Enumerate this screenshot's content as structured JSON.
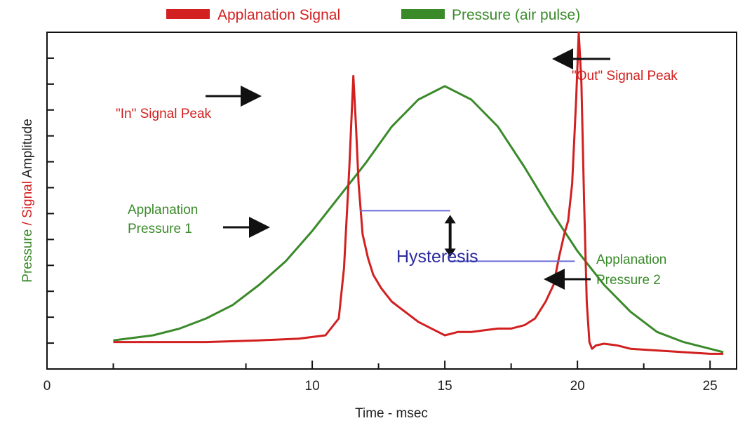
{
  "chart_data": {
    "type": "line",
    "title": "",
    "xlabel": "Time - msec",
    "ylabel_parts": [
      "Pressure",
      " / ",
      "Signal",
      " Amplitude"
    ],
    "xlim": [
      0,
      26
    ],
    "ylim": [
      0,
      1
    ],
    "xticks": [
      0,
      10,
      15,
      20,
      25
    ],
    "xtick_labels": [
      "0",
      "10",
      "15",
      "20",
      "25"
    ],
    "x_minor_ticks": [
      2.5,
      7.5,
      12.5,
      17.5,
      22.5
    ],
    "y_minor_tick_count": 12,
    "grid": false,
    "legend": {
      "position": "top",
      "items": [
        {
          "label": "Applanation Signal",
          "color": "#d21f1f"
        },
        {
          "label": "Pressure (air pulse)",
          "color": "#3a8a2a"
        }
      ]
    },
    "series": [
      {
        "name": "Applanation Signal",
        "color": "#d21f1f",
        "x": [
          2.5,
          4,
          6,
          8,
          9.5,
          10.5,
          11,
          11.2,
          11.4,
          11.55,
          11.65,
          11.75,
          11.9,
          12.1,
          12.3,
          12.6,
          13,
          13.5,
          14,
          14.5,
          15,
          15.5,
          16,
          16.5,
          17,
          17.5,
          18,
          18.4,
          18.8,
          19.1,
          19.3,
          19.5,
          19.65,
          19.8,
          19.95,
          20.05,
          20.15,
          20.25,
          20.35,
          20.45,
          20.55,
          20.7,
          21,
          21.5,
          22,
          23,
          24,
          25,
          25.5
        ],
        "y": [
          0.08,
          0.08,
          0.08,
          0.085,
          0.09,
          0.1,
          0.15,
          0.3,
          0.6,
          0.87,
          0.72,
          0.55,
          0.4,
          0.33,
          0.28,
          0.24,
          0.2,
          0.17,
          0.14,
          0.12,
          0.1,
          0.11,
          0.11,
          0.115,
          0.12,
          0.12,
          0.13,
          0.15,
          0.2,
          0.25,
          0.33,
          0.4,
          0.44,
          0.55,
          0.8,
          1.0,
          0.85,
          0.5,
          0.2,
          0.08,
          0.06,
          0.07,
          0.075,
          0.07,
          0.06,
          0.055,
          0.05,
          0.045,
          0.045
        ]
      },
      {
        "name": "Pressure (air pulse)",
        "color": "#3a8a2a",
        "x": [
          2.5,
          4,
          5,
          6,
          7,
          8,
          9,
          10,
          11,
          12,
          13,
          14,
          15,
          16,
          17,
          18,
          19,
          20,
          21,
          22,
          23,
          24,
          25,
          25.5
        ],
        "y": [
          0.085,
          0.1,
          0.12,
          0.15,
          0.19,
          0.25,
          0.32,
          0.41,
          0.51,
          0.61,
          0.72,
          0.8,
          0.84,
          0.8,
          0.72,
          0.6,
          0.47,
          0.35,
          0.25,
          0.17,
          0.11,
          0.08,
          0.06,
          0.05
        ]
      }
    ],
    "annotations": [
      {
        "id": "in-peak",
        "text": "\"In\" Signal Peak",
        "color": "#d21f1f"
      },
      {
        "id": "out-peak",
        "text": "\"Out\" Signal Peak",
        "color": "#d21f1f"
      },
      {
        "id": "ap1",
        "lines": [
          "Applanation",
          "Pressure 1"
        ],
        "color": "#3a8a2a"
      },
      {
        "id": "ap2",
        "lines": [
          "Applanation",
          "Pressure 2"
        ],
        "color": "#3a8a2a"
      },
      {
        "id": "hysteresis",
        "text": "Hysteresis",
        "color": "#2a2aa0"
      }
    ],
    "hysteresis": {
      "y_high": 0.47,
      "y_low": 0.32,
      "x_start_1": 11.8,
      "x_start_2": 19.9,
      "x_arrow": 15.2
    }
  }
}
